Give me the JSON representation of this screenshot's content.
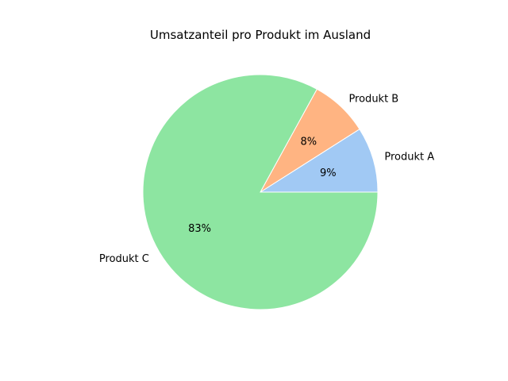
{
  "chart_data": {
    "type": "pie",
    "title": "Umsatzanteil pro Produkt im Ausland",
    "categories": [
      "Produkt A",
      "Produkt B",
      "Produkt C"
    ],
    "values": [
      9,
      8,
      83
    ],
    "percent_labels": [
      "9%",
      "8%",
      "83%"
    ],
    "colors": [
      "#a1c9f4",
      "#ffb482",
      "#8de5a1"
    ],
    "start_angle_deg": 0,
    "direction": "counterclockwise",
    "legend": "none"
  }
}
